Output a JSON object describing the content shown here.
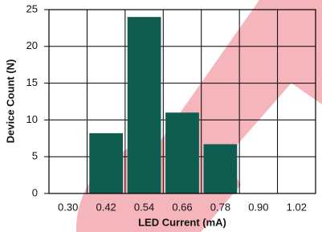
{
  "chart_data": {
    "type": "bar",
    "x_label": "LED Current (mA)",
    "y_label": "Device Count (N)",
    "categories": [
      "0.30",
      "0.42",
      "0.54",
      "0.66",
      "0.78",
      "0.90",
      "1.02"
    ],
    "values": [
      0,
      8.2,
      24,
      11,
      6.7,
      0,
      0
    ],
    "color": "#0f5c50",
    "ylim": [
      0,
      25
    ],
    "yticks": [
      0,
      5,
      10,
      15,
      20,
      25
    ],
    "grid": true
  }
}
